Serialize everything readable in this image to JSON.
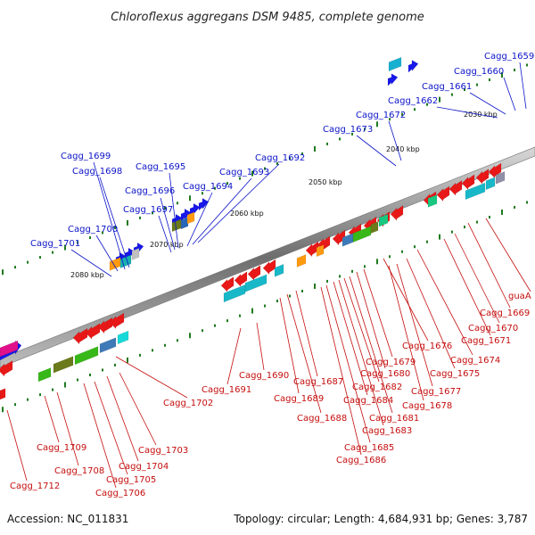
{
  "title": "Chloroflexus aggregans DSM 9485, complete genome",
  "accession": "Accession: NC_011831",
  "summary": "Topology: circular; Length: 4,684,931 bp; Genes: 3,787",
  "kbp_ticks": [
    "2030 kbp",
    "2040 kbp",
    "2050 kbp",
    "2060 kbp",
    "2070 kbp",
    "2080 kbp"
  ],
  "top_labels": [
    "Cagg_1659",
    "Cagg_1660",
    "Cagg_1661",
    "Cagg_1662",
    "Cagg_1672",
    "Cagg_1673",
    "Cagg_1692",
    "Cagg_1693",
    "Cagg_1694",
    "Cagg_1695",
    "Cagg_1696",
    "Cagg_1697",
    "Cagg_1698",
    "Cagg_1699",
    "Cagg_1700",
    "Cagg_1701"
  ],
  "bottom_labels": [
    "guaA",
    "Cagg_1669",
    "Cagg_1670",
    "Cagg_1671",
    "Cagg_1674",
    "Cagg_1675",
    "Cagg_1676",
    "Cagg_1677",
    "Cagg_1678",
    "Cagg_1679",
    "Cagg_1680",
    "Cagg_1681",
    "Cagg_1682",
    "Cagg_1683",
    "Cagg_1684",
    "Cagg_1685",
    "Cagg_1686",
    "Cagg_1687",
    "Cagg_1688",
    "Cagg_1689",
    "Cagg_1690",
    "Cagg_1691",
    "Cagg_1702",
    "Cagg_1703",
    "Cagg_1704",
    "Cagg_1705",
    "Cagg_1706",
    "Cagg_1708",
    "Cagg_1709",
    "Cagg_1712"
  ],
  "colors": {
    "backbone": "#8a8a8a",
    "forward_gene": "#1818e8",
    "reverse_gene": "#e81818",
    "top_label": "#0b13c8",
    "bottom_label": "#c50d0d",
    "tick": "#1f7a1f"
  }
}
